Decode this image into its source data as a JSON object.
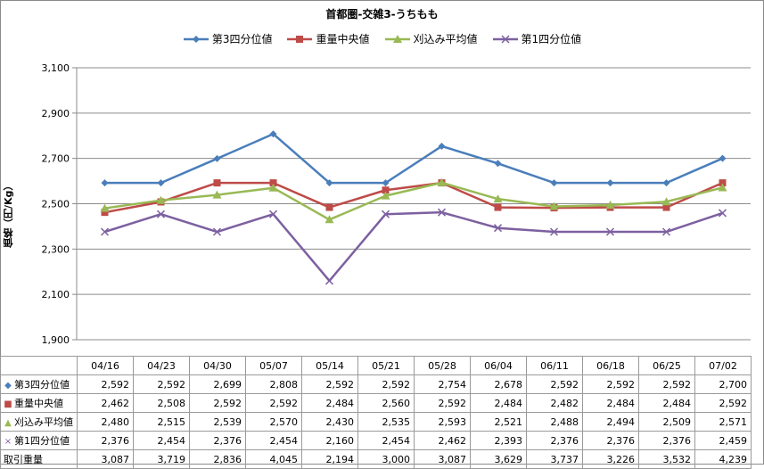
{
  "chart_data": {
    "type": "line",
    "title": "首都圏-交雑3-うちもも",
    "ylabel": "価格（円/Kg）",
    "ylim": [
      1900,
      3100
    ],
    "yticks": [
      1900,
      2100,
      2300,
      2500,
      2700,
      2900,
      3100
    ],
    "ytick_labels": [
      "1,900",
      "2,100",
      "2,300",
      "2,500",
      "2,700",
      "2,900",
      "3,100"
    ],
    "grid": true,
    "legend_position": "top",
    "categories": [
      "04/16",
      "04/23",
      "04/30",
      "05/07",
      "05/14",
      "05/21",
      "05/28",
      "06/04",
      "06/11",
      "06/18",
      "06/25",
      "07/02"
    ],
    "series": [
      {
        "name": "第3四分位値",
        "color": "#4a7ebb",
        "marker": "diamond",
        "values": [
          2592,
          2592,
          2699,
          2808,
          2592,
          2592,
          2754,
          2678,
          2592,
          2592,
          2592,
          2700
        ],
        "labels": [
          "2,592",
          "2,592",
          "2,699",
          "2,808",
          "2,592",
          "2,592",
          "2,754",
          "2,678",
          "2,592",
          "2,592",
          "2,592",
          "2,700"
        ]
      },
      {
        "name": "重量中央値",
        "color": "#be4b48",
        "marker": "square",
        "values": [
          2462,
          2508,
          2592,
          2592,
          2484,
          2560,
          2592,
          2484,
          2482,
          2484,
          2484,
          2592
        ],
        "labels": [
          "2,462",
          "2,508",
          "2,592",
          "2,592",
          "2,484",
          "2,560",
          "2,592",
          "2,484",
          "2,482",
          "2,484",
          "2,484",
          "2,592"
        ]
      },
      {
        "name": "刈込み平均値",
        "color": "#98b954",
        "marker": "triangle",
        "values": [
          2480,
          2515,
          2539,
          2570,
          2430,
          2535,
          2593,
          2521,
          2488,
          2494,
          2509,
          2571
        ],
        "labels": [
          "2,480",
          "2,515",
          "2,539",
          "2,570",
          "2,430",
          "2,535",
          "2,593",
          "2,521",
          "2,488",
          "2,494",
          "2,509",
          "2,571"
        ]
      },
      {
        "name": "第1四分位値",
        "color": "#7d60a0",
        "marker": "x",
        "values": [
          2376,
          2454,
          2376,
          2454,
          2160,
          2454,
          2462,
          2393,
          2376,
          2376,
          2376,
          2459
        ],
        "labels": [
          "2,376",
          "2,454",
          "2,376",
          "2,454",
          "2,160",
          "2,454",
          "2,462",
          "2,393",
          "2,376",
          "2,376",
          "2,376",
          "2,459"
        ]
      }
    ],
    "table_extra_row": {
      "name": "取引重量",
      "values": [
        3087,
        3719,
        2836,
        4045,
        2194,
        3000,
        3087,
        3629,
        3737,
        3226,
        3532,
        4239
      ],
      "labels": [
        "3,087",
        "3,719",
        "2,836",
        "4,045",
        "2,194",
        "3,000",
        "3,087",
        "3,629",
        "3,737",
        "3,226",
        "3,532",
        "4,239"
      ]
    }
  }
}
